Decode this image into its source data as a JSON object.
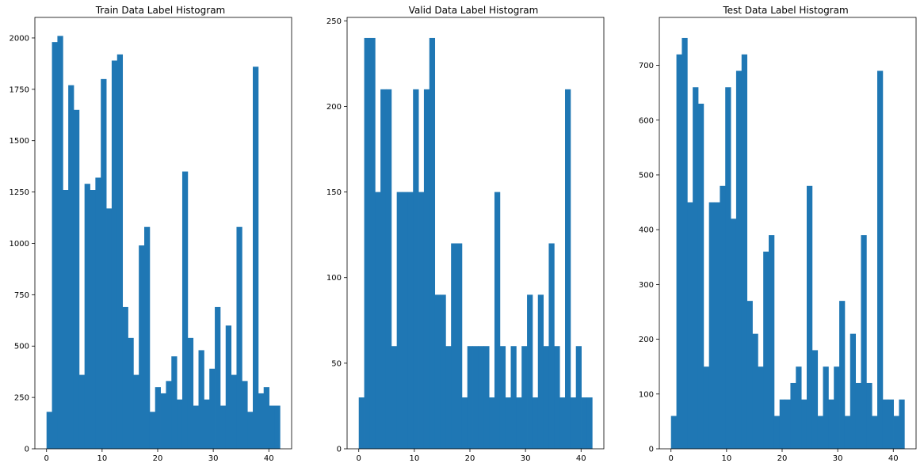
{
  "chart_data": [
    {
      "type": "bar",
      "title": "Train Data Label Histogram",
      "xlim": [
        -2.1,
        44.1
      ],
      "ylim": [
        0,
        2100
      ],
      "xticks": [
        0,
        10,
        20,
        30,
        40
      ],
      "yticks": [
        0,
        250,
        500,
        750,
        1000,
        1250,
        1500,
        1750,
        2000
      ],
      "bin_start": 0,
      "bin_width": 0.9767,
      "values": [
        180,
        1980,
        2010,
        1260,
        1770,
        1650,
        360,
        1290,
        1260,
        1320,
        1800,
        1170,
        1890,
        1920,
        690,
        540,
        360,
        990,
        1080,
        180,
        300,
        270,
        330,
        450,
        240,
        1350,
        540,
        210,
        480,
        240,
        390,
        690,
        210,
        600,
        360,
        1080,
        330,
        180,
        1860,
        270,
        300,
        210,
        210
      ],
      "color": "#1f77b4"
    },
    {
      "type": "bar",
      "title": "Valid Data Label Histogram",
      "xlim": [
        -2.1,
        44.1
      ],
      "ylim": [
        0,
        252
      ],
      "xticks": [
        0,
        10,
        20,
        30,
        40
      ],
      "yticks": [
        0,
        50,
        100,
        150,
        200,
        250
      ],
      "bin_start": 0,
      "bin_width": 0.9767,
      "values": [
        30,
        240,
        240,
        150,
        210,
        210,
        60,
        150,
        150,
        150,
        210,
        150,
        210,
        240,
        90,
        90,
        60,
        120,
        120,
        30,
        60,
        60,
        60,
        60,
        30,
        150,
        60,
        30,
        60,
        30,
        60,
        90,
        30,
        90,
        60,
        120,
        60,
        30,
        210,
        30,
        60,
        30,
        30
      ],
      "color": "#1f77b4"
    },
    {
      "type": "bar",
      "title": "Test Data Label Histogram",
      "xlim": [
        -2.1,
        44.1
      ],
      "ylim": [
        0,
        787.5
      ],
      "xticks": [
        0,
        10,
        20,
        30,
        40
      ],
      "yticks": [
        0,
        100,
        200,
        300,
        400,
        500,
        600,
        700
      ],
      "bin_start": 0,
      "bin_width": 0.9767,
      "values": [
        60,
        720,
        750,
        450,
        660,
        630,
        150,
        450,
        450,
        480,
        660,
        420,
        690,
        720,
        270,
        210,
        150,
        360,
        390,
        60,
        90,
        90,
        120,
        150,
        90,
        480,
        180,
        60,
        150,
        90,
        150,
        270,
        60,
        210,
        120,
        390,
        120,
        60,
        690,
        90,
        90,
        60,
        90
      ],
      "color": "#1f77b4"
    }
  ]
}
